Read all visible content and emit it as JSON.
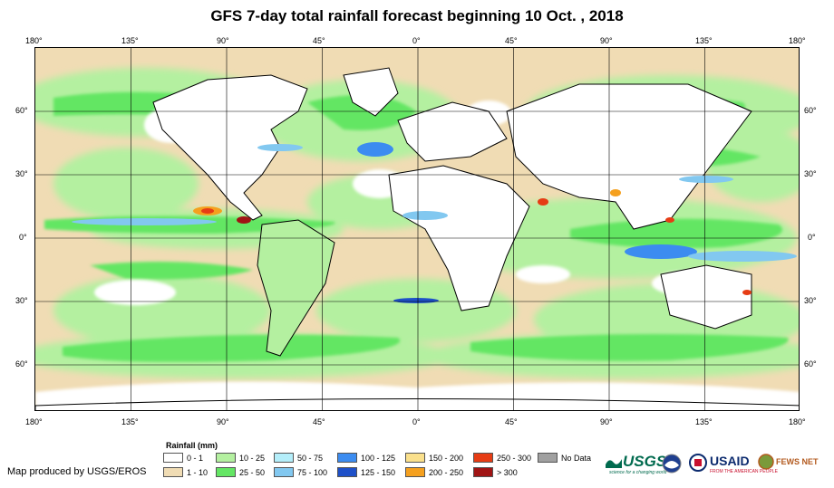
{
  "title": "GFS 7-day total rainfall forecast beginning 10 Oct. , 2018",
  "lon_labels": [
    "180°",
    "135°",
    "90°",
    "45°",
    "0°",
    "45°",
    "90°",
    "135°",
    "180°"
  ],
  "lat_labels": [
    "60°",
    "30°",
    "0°",
    "30°",
    "60°"
  ],
  "legend": {
    "title": "Rainfall (mm)",
    "items": [
      {
        "label": "0 - 1",
        "color": "#ffffff"
      },
      {
        "label": "1 - 10",
        "color": "#f0dcb4"
      },
      {
        "label": "10 - 25",
        "color": "#b4f0a0"
      },
      {
        "label": "25 - 50",
        "color": "#64e664"
      },
      {
        "label": "50 - 75",
        "color": "#b4eefa"
      },
      {
        "label": "75 - 100",
        "color": "#82c8f0"
      },
      {
        "label": "100 - 125",
        "color": "#3c8cf0"
      },
      {
        "label": "125 - 150",
        "color": "#1e50c8"
      },
      {
        "label": "150 - 200",
        "color": "#fae08c"
      },
      {
        "label": "200 - 250",
        "color": "#f5a01e"
      },
      {
        "label": "250 - 300",
        "color": "#e63c14"
      },
      {
        "label": "> 300",
        "color": "#a01414"
      },
      {
        "label": "No Data",
        "color": "#a0a0a0"
      }
    ]
  },
  "credit": "Map produced by USGS/EROS",
  "logos": {
    "usgs": "USGS",
    "usgs_tagline": "science for a changing world",
    "usaid": "USAID",
    "usaid_tagline": "FROM THE AMERICAN PEOPLE",
    "fews": "FEWS NET"
  }
}
